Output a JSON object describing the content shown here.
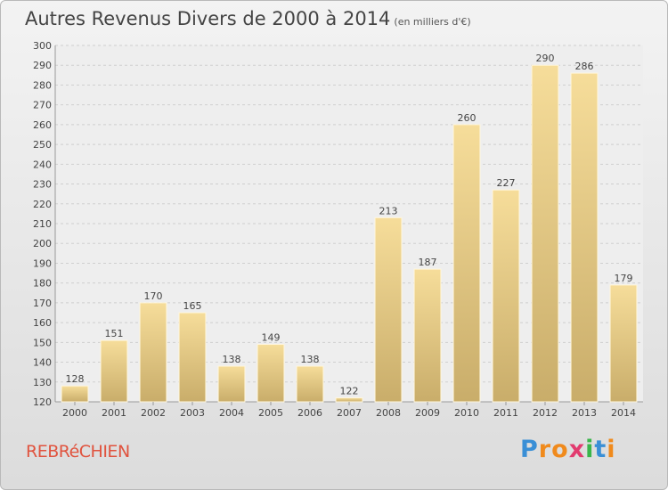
{
  "chart_data": {
    "type": "bar",
    "title": "Autres Revenus Divers de 2000 à 2014",
    "subtitle": "(en milliers d'€)",
    "categories": [
      "2000",
      "2001",
      "2002",
      "2003",
      "2004",
      "2005",
      "2006",
      "2007",
      "2008",
      "2009",
      "2010",
      "2011",
      "2012",
      "2013",
      "2014"
    ],
    "values": [
      128,
      151,
      170,
      165,
      138,
      149,
      138,
      122,
      213,
      187,
      260,
      227,
      290,
      286,
      179
    ],
    "ylim": [
      120,
      300
    ],
    "yticks": [
      120,
      130,
      140,
      150,
      160,
      170,
      180,
      190,
      200,
      210,
      220,
      230,
      240,
      250,
      260,
      270,
      280,
      290,
      300
    ],
    "xlabel": "",
    "ylabel": "",
    "grid": true,
    "bar_color": "#e8cd88"
  },
  "footer": {
    "commune": "REBRéCHIEN",
    "logo": [
      "P",
      "r",
      "o",
      "x",
      "i",
      "t",
      "i"
    ],
    "logo_colors": [
      "#3a8fd6",
      "#f08a1c",
      "#f08a1c",
      "#e23b6f",
      "#3ab54a",
      "#3a8fd6",
      "#f08a1c"
    ]
  }
}
